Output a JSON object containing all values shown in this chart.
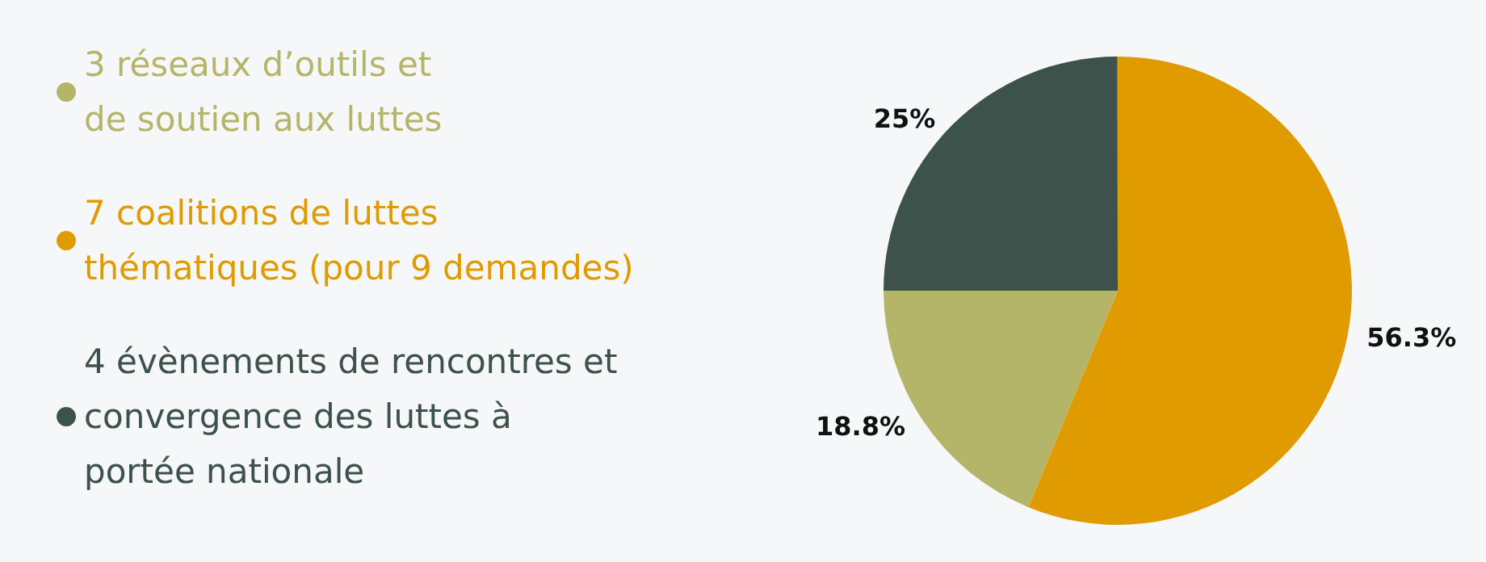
{
  "chart_data": {
    "type": "pie",
    "categories": [
      "3 réseaux d’outils et\nde soutien aux luttes",
      "7 coalitions de luttes\nthématiques (pour 9 demandes)",
      "4 évènements de rencontres et\nconvergence des luttes à\nportée nationale"
    ],
    "values": [
      18.8,
      56.3,
      25
    ],
    "colors": [
      "#b5b56a",
      "#e09b00",
      "#3c524a"
    ],
    "value_labels": [
      "18.8%",
      "56.3%",
      "25%"
    ],
    "legend": "left"
  }
}
